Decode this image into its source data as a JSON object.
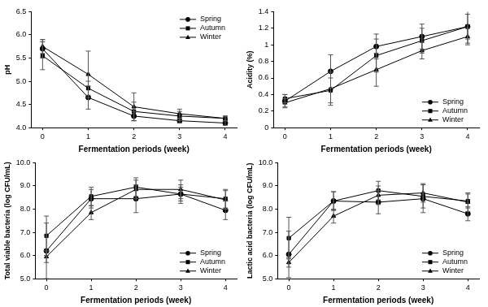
{
  "chart_data": [
    {
      "type": "line",
      "x_label": "Fermentation periods (week)",
      "y_label": "pH",
      "x": [
        0,
        1,
        2,
        3,
        4
      ],
      "xlim": [
        -0.25,
        4.25
      ],
      "xticks": [
        0,
        1,
        2,
        3,
        4
      ],
      "ylim": [
        4,
        6.5
      ],
      "yticks": [
        {
          "value": 4,
          "label": "4.0"
        },
        {
          "value": 4.5,
          "label": "4.5"
        },
        {
          "value": 5,
          "label": "5.0"
        },
        {
          "value": 5.5,
          "label": "5.5"
        },
        {
          "value": 6,
          "label": "6.0"
        },
        {
          "value": 6.5,
          "label": "6.5"
        }
      ],
      "grid": false,
      "legend": "upper right",
      "series": [
        {
          "name": "Spring",
          "color": "#000000",
          "marker": "circle",
          "line_style": "solid",
          "values": [
            5.7,
            4.65,
            4.25,
            4.15,
            4.1
          ],
          "error": [
            0.2,
            0.25,
            0.1,
            0.05,
            0.05
          ]
        },
        {
          "name": "Autumn",
          "color": "#000000",
          "marker": "square",
          "line_style": "solid",
          "values": [
            5.55,
            4.85,
            4.35,
            4.25,
            4.2
          ],
          "error": [
            0.3,
            0.15,
            0.2,
            0.1,
            0.05
          ]
        },
        {
          "name": "Winter",
          "color": "#000000",
          "marker": "triangle",
          "line_style": "solid",
          "values": [
            5.75,
            5.15,
            4.45,
            4.3,
            4.2
          ],
          "error": [
            0.15,
            0.5,
            0.3,
            0.1,
            0.05
          ]
        }
      ]
    },
    {
      "type": "line",
      "x_label": "Fermentation periods (week)",
      "y_label": "Acidity (%)",
      "x": [
        0,
        1,
        2,
        3,
        4
      ],
      "xlim": [
        -0.25,
        4.25
      ],
      "xticks": [
        0,
        1,
        2,
        3,
        4
      ],
      "ylim": [
        0,
        1.4
      ],
      "yticks": [
        0,
        0.2,
        0.4,
        0.6,
        0.8,
        1,
        1.2,
        1.4
      ],
      "grid": false,
      "legend": "lower right",
      "series": [
        {
          "name": "Spring",
          "color": "#000000",
          "marker": "circle",
          "line_style": "solid",
          "values": [
            0.32,
            0.68,
            0.98,
            1.1,
            1.22
          ],
          "error": [
            0.08,
            0.2,
            0.15,
            0.15,
            0.2
          ]
        },
        {
          "name": "Autumn",
          "color": "#000000",
          "marker": "square",
          "line_style": "solid",
          "values": [
            0.35,
            0.45,
            0.87,
            1.05,
            1.22
          ],
          "error": [
            0.05,
            0.15,
            0.2,
            0.15,
            0.15
          ]
        },
        {
          "name": "Winter",
          "color": "#000000",
          "marker": "triangle",
          "line_style": "solid",
          "values": [
            0.3,
            0.47,
            0.7,
            0.93,
            1.1
          ],
          "error": [
            0.05,
            0.2,
            0.2,
            0.1,
            0.1
          ]
        }
      ]
    },
    {
      "type": "line",
      "x_label": "Fermentation periods (week)",
      "y_label": "Total viable bacteria (log CFU/mL)",
      "x": [
        0,
        1,
        2,
        3,
        4
      ],
      "xlim": [
        -0.25,
        4.25
      ],
      "xticks": [
        0,
        1,
        2,
        3,
        4
      ],
      "ylim": [
        5,
        10
      ],
      "yticks": [
        {
          "value": 5,
          "label": "5.0"
        },
        {
          "value": 6,
          "label": "6.0"
        },
        {
          "value": 7,
          "label": "7.0"
        },
        {
          "value": 8,
          "label": "8.0"
        },
        {
          "value": 9,
          "label": "9.0"
        },
        {
          "value": 10,
          "label": "10.0"
        }
      ],
      "grid": false,
      "legend": "lower right",
      "series": [
        {
          "name": "Spring",
          "color": "#000000",
          "marker": "circle",
          "line_style": "solid",
          "values": [
            6.2,
            8.45,
            8.45,
            8.65,
            7.95
          ],
          "error": [
            1.2,
            0.4,
            0.6,
            0.4,
            0.4
          ]
        },
        {
          "name": "Autumn",
          "color": "#000000",
          "marker": "square",
          "line_style": "solid",
          "values": [
            6.85,
            8.55,
            8.95,
            8.65,
            8.45
          ],
          "error": [
            0.85,
            0.4,
            0.4,
            0.3,
            0.4
          ]
        },
        {
          "name": "Winter",
          "color": "#000000",
          "marker": "triangle",
          "line_style": "solid",
          "values": [
            5.95,
            7.85,
            8.85,
            8.85,
            8.4
          ],
          "error": [
            0.25,
            0.3,
            0.4,
            0.4,
            0.4
          ]
        }
      ]
    },
    {
      "type": "line",
      "x_label": "Fermentation periods (week)",
      "y_label": "Lactic acid bacteria (log CFU/mL)",
      "x": [
        0,
        1,
        2,
        3,
        4
      ],
      "xlim": [
        -0.25,
        4.25
      ],
      "xticks": [
        0,
        1,
        2,
        3,
        4
      ],
      "ylim": [
        5,
        10
      ],
      "yticks": [
        {
          "value": 5,
          "label": "5.0"
        },
        {
          "value": 6,
          "label": "6.0"
        },
        {
          "value": 7,
          "label": "7.0"
        },
        {
          "value": 8,
          "label": "8.0"
        },
        {
          "value": 9,
          "label": "9.0"
        },
        {
          "value": 10,
          "label": "10.0"
        }
      ],
      "grid": false,
      "legend": "lower right",
      "series": [
        {
          "name": "Spring",
          "color": "#000000",
          "marker": "circle",
          "line_style": "solid",
          "values": [
            6.05,
            8.35,
            8.3,
            8.45,
            7.8
          ],
          "error": [
            1.0,
            0.4,
            0.5,
            0.6,
            0.3
          ]
        },
        {
          "name": "Autumn",
          "color": "#000000",
          "marker": "square",
          "line_style": "solid",
          "values": [
            6.75,
            8.35,
            8.8,
            8.55,
            8.35
          ],
          "error": [
            0.9,
            0.4,
            0.4,
            0.5,
            0.3
          ]
        },
        {
          "name": "Winter",
          "color": "#000000",
          "marker": "triangle",
          "line_style": "solid",
          "values": [
            5.7,
            7.7,
            8.6,
            8.7,
            8.3
          ],
          "error": [
            0.2,
            0.3,
            0.4,
            0.4,
            0.4
          ]
        }
      ]
    }
  ]
}
